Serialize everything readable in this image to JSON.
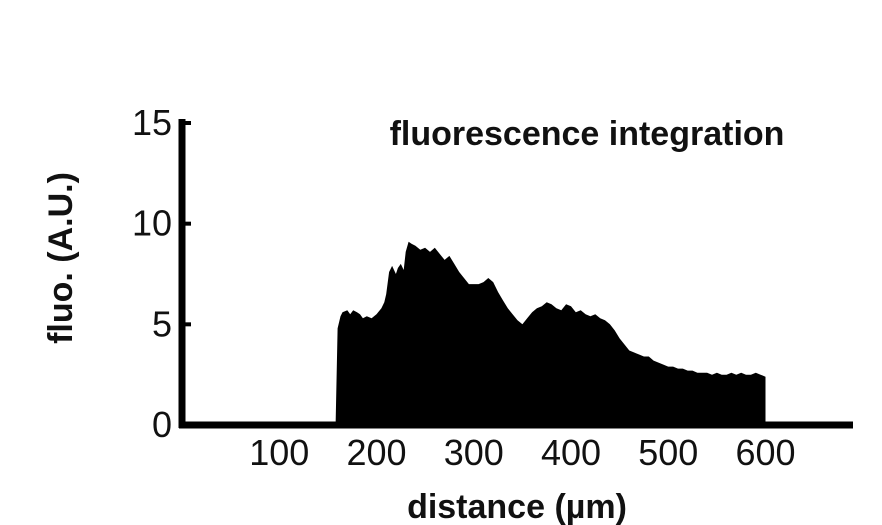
{
  "chart_data": {
    "type": "area",
    "title": "",
    "annotation": "fluorescence integration",
    "xlabel": "distance (µm)",
    "ylabel": "fluo. (A.U.)",
    "xlim": [
      0,
      690
    ],
    "ylim": [
      0,
      15
    ],
    "xticks": [
      100,
      200,
      300,
      400,
      500,
      600
    ],
    "yticks": [
      0,
      5,
      10,
      15
    ],
    "grid": false,
    "legend": "none",
    "color": "#000000",
    "series": [
      {
        "x": [
          0,
          158,
          160,
          163,
          165,
          170,
          173,
          176,
          180,
          183,
          186,
          190,
          195,
          200,
          205,
          208,
          210,
          213,
          216,
          220,
          222,
          225,
          228,
          230,
          233,
          236,
          240,
          245,
          250,
          255,
          260,
          265,
          270,
          275,
          280,
          285,
          290,
          295,
          300,
          305,
          310,
          315,
          320,
          325,
          330,
          335,
          340,
          345,
          350,
          355,
          360,
          365,
          370,
          375,
          380,
          385,
          390,
          395,
          400,
          405,
          410,
          415,
          420,
          425,
          430,
          435,
          440,
          445,
          450,
          455,
          460,
          465,
          470,
          475,
          480,
          485,
          490,
          495,
          500,
          505,
          510,
          515,
          520,
          525,
          530,
          535,
          540,
          545,
          550,
          555,
          560,
          565,
          570,
          575,
          580,
          585,
          590,
          595,
          600
        ],
        "y": [
          0,
          0,
          4.8,
          5.4,
          5.6,
          5.7,
          5.5,
          5.7,
          5.6,
          5.5,
          5.3,
          5.4,
          5.3,
          5.5,
          5.8,
          6.1,
          6.5,
          7.6,
          7.9,
          7.5,
          7.8,
          8.0,
          7.7,
          8.6,
          9.1,
          9.0,
          8.9,
          8.7,
          8.8,
          8.6,
          8.8,
          8.5,
          8.2,
          8.4,
          8.0,
          7.6,
          7.3,
          7.0,
          7.0,
          7.0,
          7.1,
          7.3,
          7.1,
          6.6,
          6.2,
          5.8,
          5.5,
          5.2,
          5.0,
          5.3,
          5.6,
          5.8,
          5.9,
          6.1,
          6.0,
          5.8,
          5.7,
          6.0,
          5.9,
          5.6,
          5.7,
          5.5,
          5.4,
          5.5,
          5.3,
          5.2,
          5.0,
          4.7,
          4.3,
          4.0,
          3.7,
          3.6,
          3.5,
          3.4,
          3.4,
          3.2,
          3.1,
          3.0,
          2.9,
          2.9,
          2.8,
          2.8,
          2.7,
          2.7,
          2.6,
          2.6,
          2.6,
          2.5,
          2.6,
          2.5,
          2.5,
          2.6,
          2.5,
          2.6,
          2.5,
          2.5,
          2.6,
          2.5,
          2.4
        ]
      }
    ]
  }
}
